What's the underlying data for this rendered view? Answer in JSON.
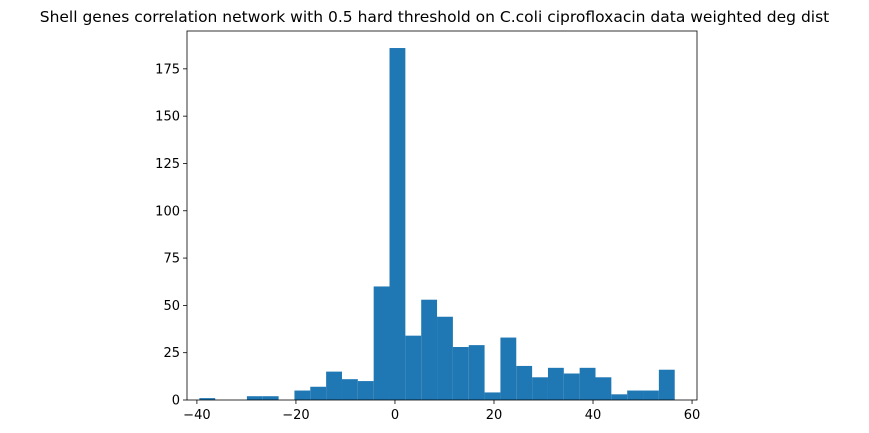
{
  "chart_data": {
    "type": "bar",
    "title": "Shell genes correlation network with 0.5 hard threshold on C.coli ciprofloxacin data weighted deg dist",
    "xlabel": "",
    "ylabel": "",
    "xlim": [
      -42,
      61
    ],
    "ylim": [
      0,
      195
    ],
    "xticks": [
      -40,
      -20,
      0,
      20,
      40,
      60
    ],
    "xtick_labels": [
      "−40",
      "−20",
      "0",
      "20",
      "40",
      "60"
    ],
    "yticks": [
      0,
      25,
      50,
      75,
      100,
      125,
      150,
      175
    ],
    "ytick_labels": [
      "0",
      "25",
      "50",
      "75",
      "100",
      "125",
      "150",
      "175"
    ],
    "bin_width": 3.2,
    "bin_start": -39.5,
    "values": [
      1,
      0,
      0,
      2,
      2,
      0,
      5,
      7,
      15,
      11,
      10,
      60,
      186,
      34,
      53,
      44,
      28,
      29,
      4,
      33,
      18,
      12,
      17,
      14,
      17,
      12,
      3,
      5,
      5,
      16
    ],
    "color": "#1f77b4",
    "grid": false
  }
}
